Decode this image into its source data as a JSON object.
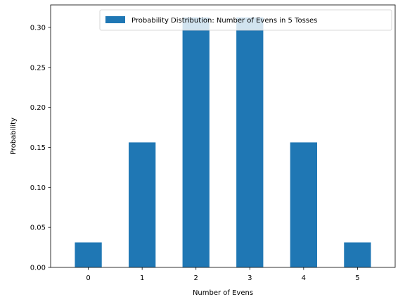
{
  "chart_data": {
    "type": "bar",
    "categories": [
      "0",
      "1",
      "2",
      "3",
      "4",
      "5"
    ],
    "series": [
      {
        "name": "Probability Distribution: Number of Evens in 5 Tosses",
        "values": [
          0.03125,
          0.15625,
          0.3125,
          0.3125,
          0.15625,
          0.03125
        ],
        "color": "#1f77b4"
      }
    ],
    "xlabel": "Number of Evens",
    "ylabel": "Probability",
    "ylim": [
      0,
      0.328125
    ],
    "yticks": [
      "0.00",
      "0.05",
      "0.10",
      "0.15",
      "0.20",
      "0.25",
      "0.30"
    ],
    "grid": false,
    "legend": "upper-right"
  }
}
